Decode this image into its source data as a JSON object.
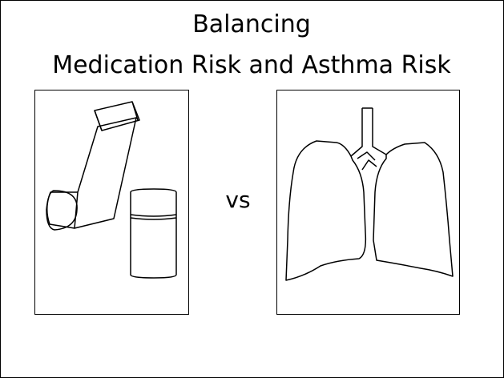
{
  "slide": {
    "title": [
      "Balancing",
      "Medication Risk and Asthma Risk"
    ],
    "separator": "vs"
  }
}
